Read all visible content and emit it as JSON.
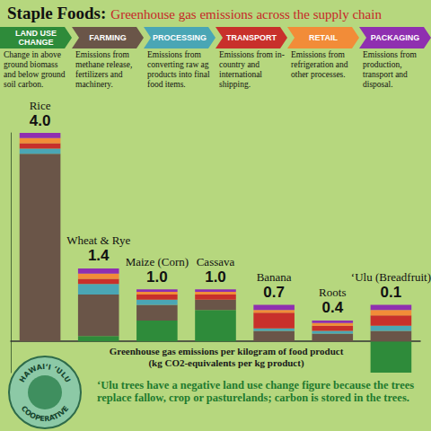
{
  "chart_data": {
    "type": "bar",
    "title": "Staple Foods:",
    "subtitle": "Greenhouse gas emissions across the supply chain",
    "categories": [
      "Rice",
      "Wheat & Rye",
      "Maize (Corn)",
      "Cassava",
      "Banana",
      "Roots",
      "ʻUlu (Breadfruit)"
    ],
    "series": [
      {
        "name": "LAND USE CHANGE",
        "description": "Change in above ground biomass and below ground soil carbon.",
        "color": "#2e8b3a",
        "values": [
          0.0,
          0.1,
          0.4,
          0.6,
          0.0,
          0.0,
          -0.6
        ]
      },
      {
        "name": "FARMING",
        "description": "Emissions from methane release, fertilizers and machinery.",
        "color": "#6a5548",
        "values": [
          3.6,
          0.8,
          0.3,
          0.2,
          0.2,
          0.15,
          0.2
        ]
      },
      {
        "name": "PROCESSING",
        "description": "Emissions from converting raw ag products into final food items.",
        "color": "#4aa6b5",
        "values": [
          0.1,
          0.2,
          0.1,
          0.0,
          0.05,
          0.05,
          0.1
        ]
      },
      {
        "name": "TRANSPORT",
        "description": "Emissions from in-country and international shipping.",
        "color": "#c8302b",
        "values": [
          0.1,
          0.1,
          0.1,
          0.1,
          0.3,
          0.1,
          0.2
        ]
      },
      {
        "name": "RETAIL",
        "description": "Emissions from refrigeration and other processes.",
        "color": "#f28c38",
        "values": [
          0.1,
          0.1,
          0.05,
          0.05,
          0.05,
          0.05,
          0.1
        ]
      },
      {
        "name": "PACKAGING",
        "description": "Emissions from production, transport and disposal.",
        "color": "#8f2fb0",
        "values": [
          0.1,
          0.1,
          0.05,
          0.05,
          0.1,
          0.05,
          0.1
        ]
      }
    ],
    "totals": [
      4.0,
      1.4,
      1.0,
      1.0,
      0.7,
      0.4,
      0.1
    ],
    "total_labels": [
      "4.0",
      "1.4",
      "1.0",
      "1.0",
      "0.7",
      "0.4",
      "0.1"
    ],
    "stacked": true,
    "xlabel": "Greenhouse gas emissions per kilogram of food product (kg CO2-equivalents per kg product)",
    "ylim": [
      -0.6,
      4.0
    ],
    "yticks": [],
    "tick_labels": false,
    "grid": false,
    "annotations": [
      "ʻUlu trees have a negative land use change figure because the trees replace fallow, crop or pasturelands; carbon is stored in the trees."
    ],
    "logo": [
      "HAWAIʻI ʻULU",
      "COOPERATIVE"
    ]
  }
}
